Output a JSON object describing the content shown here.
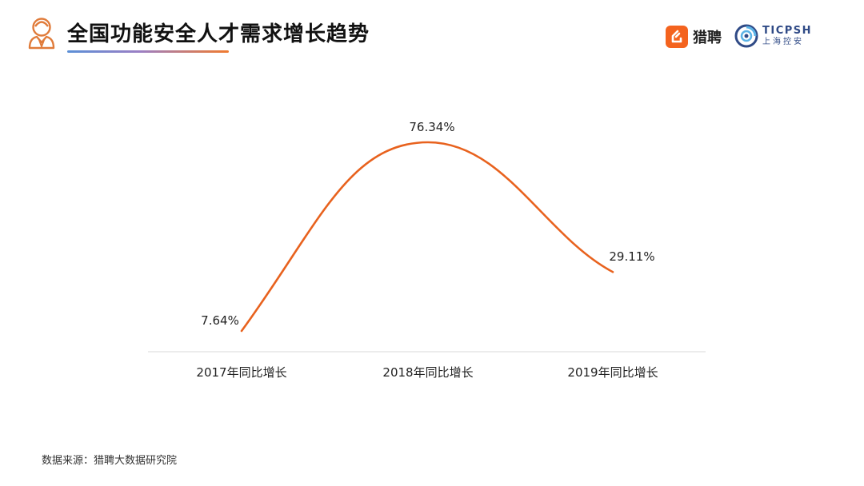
{
  "header": {
    "title": "全国功能安全人才需求增长趋势",
    "icon": "person-icon",
    "brands": {
      "liepin": {
        "name": "猎聘",
        "color": "#f4631e"
      },
      "ticpsh": {
        "name": "TICPSH",
        "subtitle": "上海控安",
        "color": "#2f4a86"
      }
    }
  },
  "chart_data": {
    "type": "line",
    "title": "全国功能安全人才需求增长趋势",
    "categories": [
      "2017年同比增长",
      "2018年同比增长",
      "2019年同比增长"
    ],
    "series": [
      {
        "values": [
          7.64,
          76.34,
          29.11
        ],
        "labels": [
          "7.64%",
          "76.34%",
          "29.11%"
        ],
        "color": "#e8621e"
      }
    ],
    "xlabel": "",
    "ylabel": "",
    "grid": false,
    "smooth": true,
    "unit": "%"
  },
  "footer": {
    "source": "数据来源：猎聘大数据研究院"
  }
}
